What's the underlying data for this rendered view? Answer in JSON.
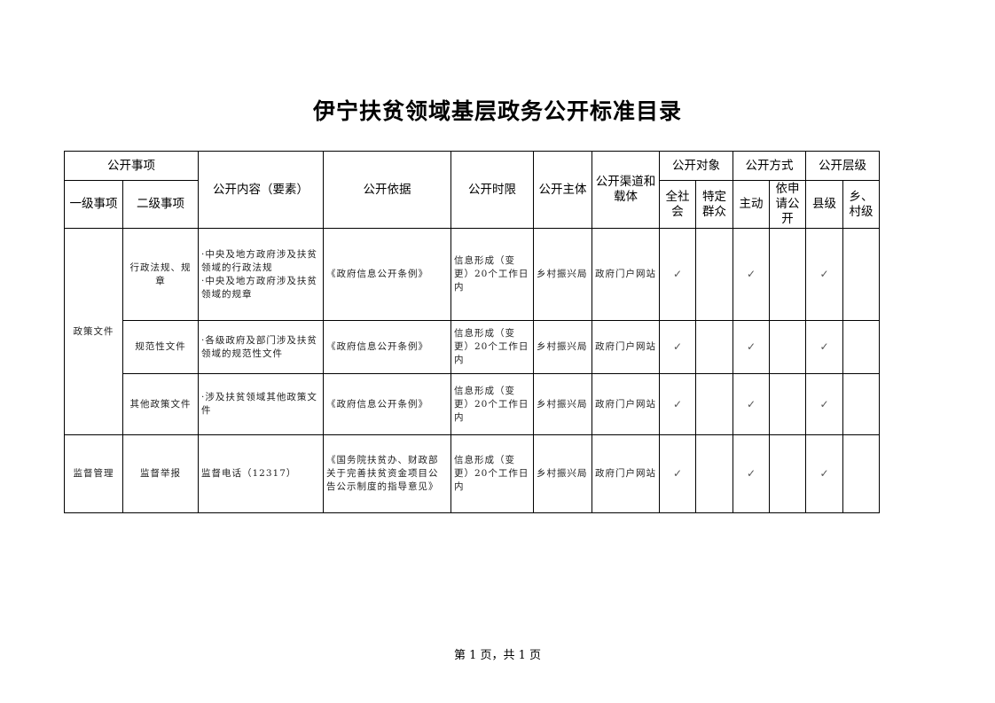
{
  "title": "伊宁扶贫领域基层政务公开标准目录",
  "header": {
    "gongkai_shixiang": "公开事项",
    "yiji": "一级事项",
    "erji": "二级事项",
    "neirong": "公开内容（要素）",
    "yiju": "公开依据",
    "shixian": "公开时限",
    "zhuti": "公开主体",
    "qudao": "公开渠道和载体",
    "duixiang": "公开对象",
    "quanshehui": "全社会",
    "teding": "特定群众",
    "fangshi": "公开方式",
    "zhudong": "主动",
    "yishenqing": "依申请公开",
    "cengji": "公开层级",
    "xianji": "县级",
    "xiangcun": "乡、村级"
  },
  "groups": [
    {
      "level1": "政策文件",
      "rows": [
        {
          "level2": "行政法规、规章",
          "content": "·中央及地方政府涉及扶贫领域的行政法规\n·中央及地方政府涉及扶贫领域的规章",
          "basis": "《政府信息公开条例》",
          "time_limit": "信息形成（变更）20个工作日内",
          "subject": "乡村振兴局",
          "channel": "政府门户网站",
          "checks": [
            true,
            false,
            true,
            false,
            true,
            false
          ]
        },
        {
          "level2": "规范性文件",
          "content": "·各级政府及部门涉及扶贫领域的规范性文件",
          "basis": "《政府信息公开条例》",
          "time_limit": "信息形成（变更）20个工作日内",
          "subject": "乡村振兴局",
          "channel": "政府门户网站",
          "checks": [
            true,
            false,
            true,
            false,
            true,
            false
          ]
        },
        {
          "level2": "其他政策文件",
          "content": "·涉及扶贫领域其他政策文件",
          "basis": "《政府信息公开条例》",
          "time_limit": "信息形成（变更）20个工作日内",
          "subject": "乡村振兴局",
          "channel": "政府门户网站",
          "checks": [
            true,
            false,
            true,
            false,
            true,
            false
          ]
        }
      ]
    },
    {
      "level1": "监督管理",
      "rows": [
        {
          "level2": "监督举报",
          "content": "监督电话（12317）",
          "basis": "《国务院扶贫办、财政部关于完善扶贫资金项目公告公示制度的指导意见》",
          "time_limit": "信息形成（变更）20个工作日内",
          "subject": "乡村振兴局",
          "channel": "政府门户网站",
          "checks": [
            true,
            false,
            true,
            false,
            true,
            false
          ]
        }
      ]
    }
  ],
  "check_mark": "✓",
  "footer": "第 1 页，共 1 页"
}
